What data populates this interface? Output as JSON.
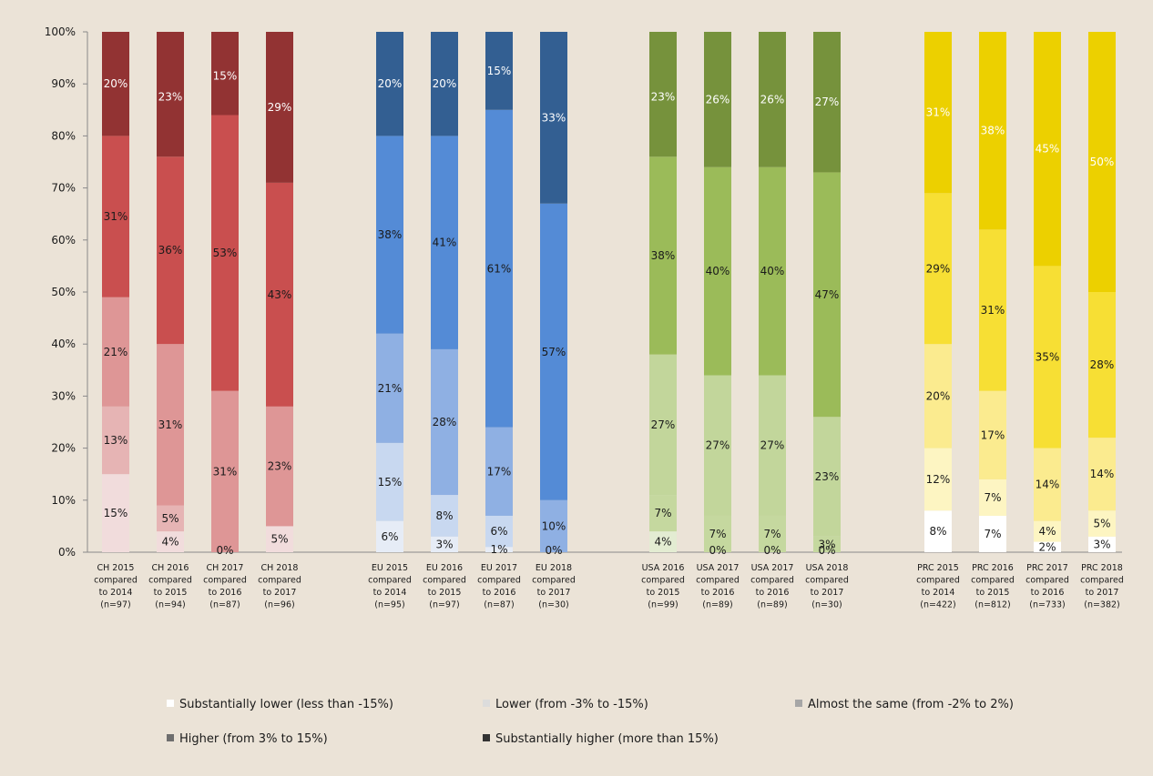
{
  "chart_data": {
    "type": "bar",
    "stacked": true,
    "ylim": [
      0,
      100
    ],
    "yticks": [
      "0%",
      "10%",
      "20%",
      "30%",
      "40%",
      "50%",
      "60%",
      "70%",
      "80%",
      "90%",
      "100%"
    ],
    "grid": false,
    "legend_position": "bottom",
    "legend": [
      {
        "label": "Substantially lower (less than -15%)",
        "color": "#ffffff"
      },
      {
        "label": "Lower (from -3% to -15%)",
        "color": "#dcdcdc"
      },
      {
        "label": "Almost the same (from -2% to 2%)",
        "color": "#a6a6a6"
      },
      {
        "label": "Higher (from 3% to 15%)",
        "color": "#6e6e6e"
      },
      {
        "label": "Substantially higher (more than 15%)",
        "color": "#333333"
      }
    ],
    "groups": [
      {
        "name": "CH",
        "colors": [
          "#f1dcdc",
          "#e6b4b4",
          "#de9696",
          "#c94f4f",
          "#923333"
        ],
        "bars": [
          {
            "label": [
              "CH 2015",
              "compared",
              "to 2014",
              "(n=97)"
            ],
            "values": [
              15,
              13,
              21,
              31,
              20
            ],
            "labels": [
              "15%",
              "13%",
              "21%",
              "31%",
              "20%"
            ]
          },
          {
            "label": [
              "CH 2016",
              "compared",
              "to 2015",
              "(n=94)"
            ],
            "values": [
              4,
              5,
              31,
              36,
              23
            ],
            "labels": [
              "4%",
              "5%",
              "31%",
              "36%",
              "23%"
            ]
          },
          {
            "label": [
              "CH 2017",
              "compared",
              "to 2016",
              "(n=87)"
            ],
            "values": [
              0,
              0,
              31,
              53,
              15
            ],
            "labels": [
              "0%",
              "",
              "31%",
              "53%",
              "15%"
            ]
          },
          {
            "label": [
              "CH 2018",
              "compared",
              "to 2017",
              "(n=96)"
            ],
            "values": [
              5,
              0,
              23,
              43,
              29
            ],
            "labels": [
              "5%",
              "",
              "23%",
              "43%",
              "29%"
            ]
          }
        ]
      },
      {
        "name": "EU",
        "colors": [
          "#e6ecf6",
          "#c8d8f0",
          "#8fb0e3",
          "#548bd6",
          "#335f92"
        ],
        "bars": [
          {
            "label": [
              "EU 2015",
              "compared",
              "to 2014",
              "(n=95)"
            ],
            "values": [
              6,
              15,
              21,
              38,
              20
            ],
            "labels": [
              "6%",
              "15%",
              "21%",
              "38%",
              "20%"
            ]
          },
          {
            "label": [
              "EU 2016",
              "compared",
              "to 2015",
              "(n=97)"
            ],
            "values": [
              3,
              8,
              28,
              41,
              20
            ],
            "labels": [
              "3%",
              "8%",
              "28%",
              "41%",
              "20%"
            ]
          },
          {
            "label": [
              "EU 2017",
              "compared",
              "to 2016",
              "(n=87)"
            ],
            "values": [
              1,
              6,
              17,
              61,
              15
            ],
            "labels": [
              "1%",
              "6%",
              "17%",
              "61%",
              "15%"
            ]
          },
          {
            "label": [
              "EU 2018",
              "compared",
              "to 2017",
              "(n=30)"
            ],
            "values": [
              0,
              0,
              10,
              57,
              33
            ],
            "labels": [
              "0%",
              "",
              "10%",
              "57%",
              "33%"
            ]
          }
        ]
      },
      {
        "name": "USA",
        "colors": [
          "#e3ecd2",
          "#c5d89f",
          "#c2d69b",
          "#9bbb59",
          "#76923c"
        ],
        "bars": [
          {
            "label": [
              "USA 2016",
              "compared",
              "to 2015",
              "(n=99)"
            ],
            "values": [
              4,
              7,
              27,
              38,
              23
            ],
            "labels": [
              "4%",
              "7%",
              "27%",
              "38%",
              "23%"
            ]
          },
          {
            "label": [
              "USA 2017",
              "compared",
              "to 2016",
              "(n=89)"
            ],
            "values": [
              0,
              7,
              27,
              40,
              26
            ],
            "labels": [
              "0%",
              "7%",
              "27%",
              "40%",
              "26%"
            ]
          },
          {
            "label": [
              "USA 2017",
              "compared",
              "to 2016",
              "(n=89)"
            ],
            "values": [
              0,
              7,
              27,
              40,
              26
            ],
            "labels": [
              "0%",
              "7%",
              "27%",
              "40%",
              "26%"
            ]
          },
          {
            "label": [
              "USA 2018",
              "compared",
              "to 2017",
              "(n=30)"
            ],
            "values": [
              0,
              3,
              23,
              47,
              27
            ],
            "labels": [
              "0%",
              "3%",
              "23%",
              "47%",
              "27%"
            ]
          }
        ]
      },
      {
        "name": "PRC",
        "colors": [
          "#ffffff",
          "#fdf5c2",
          "#fbeb8f",
          "#f7df34",
          "#ecd000"
        ],
        "bars": [
          {
            "label": [
              "PRC 2015",
              "compared",
              "to 2014",
              "(n=422)"
            ],
            "values": [
              8,
              12,
              20,
              29,
              31
            ],
            "labels": [
              "8%",
              "12%",
              "20%",
              "29%",
              "31%"
            ]
          },
          {
            "label": [
              "PRC 2016",
              "compared",
              "to 2015",
              "(n=812)"
            ],
            "values": [
              7,
              7,
              17,
              31,
              38
            ],
            "labels": [
              "7%",
              "7%",
              "17%",
              "31%",
              "38%"
            ]
          },
          {
            "label": [
              "PRC 2017",
              "compared",
              "to 2016",
              "(n=733)"
            ],
            "values": [
              2,
              4,
              14,
              35,
              45
            ],
            "labels": [
              "2%",
              "4%",
              "14%",
              "35%",
              "45%"
            ]
          },
          {
            "label": [
              "PRC 2018",
              "compared",
              "to 2017",
              "(n=382)"
            ],
            "values": [
              3,
              5,
              14,
              28,
              50
            ],
            "labels": [
              "3%",
              "5%",
              "14%",
              "28%",
              "50%"
            ]
          }
        ]
      }
    ]
  }
}
